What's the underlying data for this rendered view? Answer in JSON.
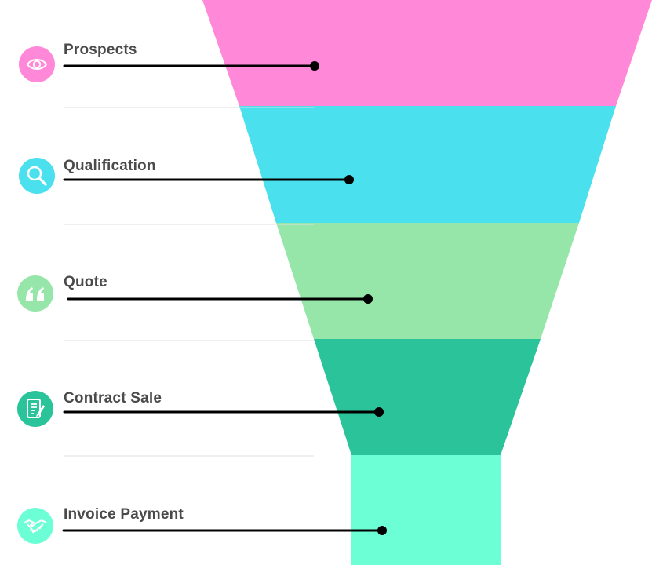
{
  "funnel": {
    "stages": [
      {
        "label": "Prospects",
        "color": "#ff88d8",
        "icon_bg": "#ff88d8",
        "icon": "eye-icon"
      },
      {
        "label": "Qualification",
        "color": "#4ae0ee",
        "icon_bg": "#4ae0ee",
        "icon": "magnifier-icon"
      },
      {
        "label": "Quote",
        "color": "#96e6a9",
        "icon_bg": "#96e6a9",
        "icon": "quote-icon"
      },
      {
        "label": "Contract Sale",
        "color": "#2bc49a",
        "icon_bg": "#2bc49a",
        "icon": "contract-icon"
      },
      {
        "label": "Invoice Payment",
        "color": "#6cffd6",
        "icon_bg": "#6cffd6",
        "icon": "handshake-icon"
      }
    ],
    "separator_color": "#dddddd",
    "leader_color": "#000000"
  }
}
